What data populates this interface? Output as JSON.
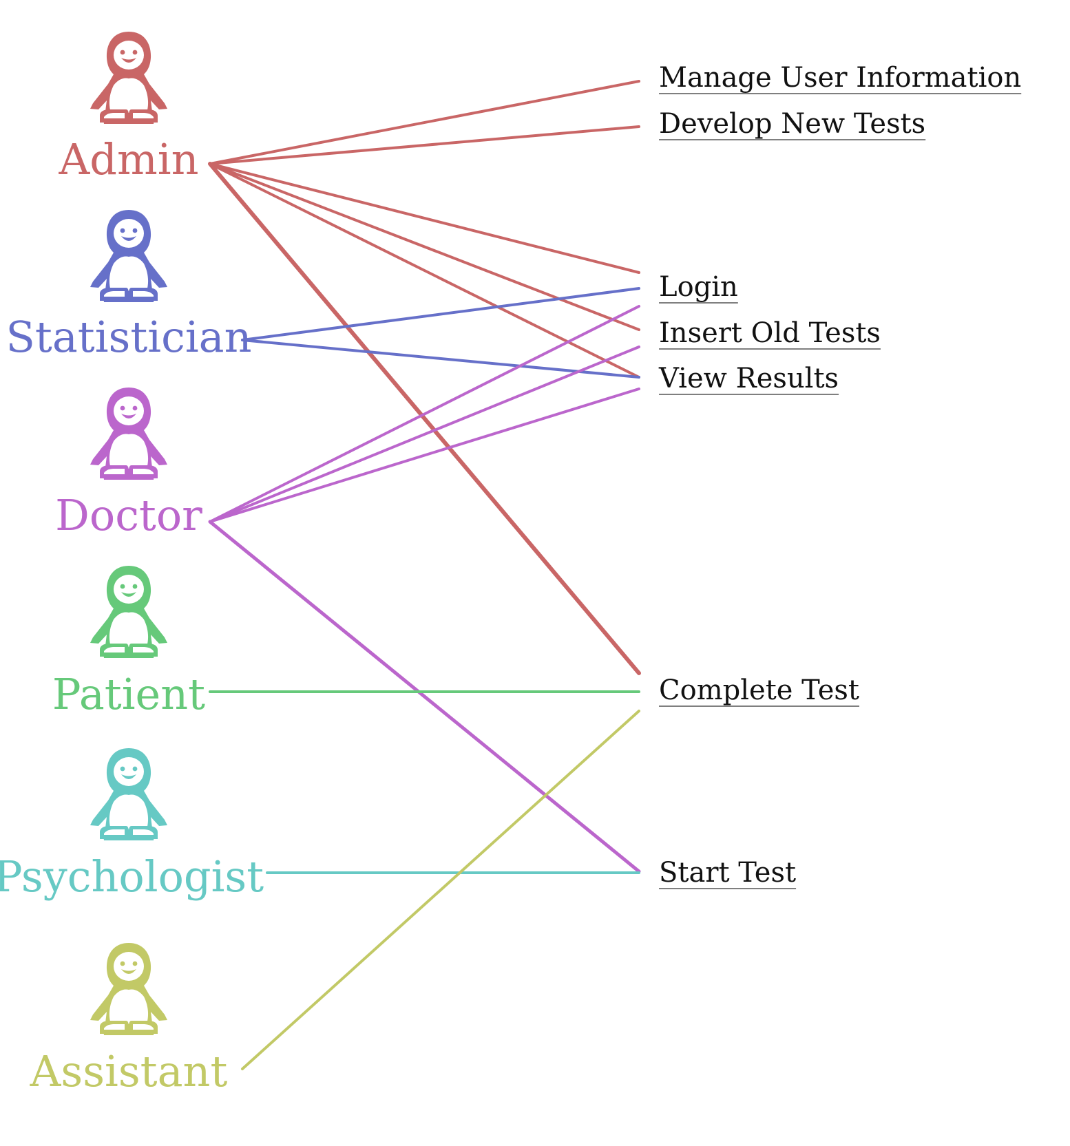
{
  "actors": [
    {
      "id": "admin",
      "label": "Admin",
      "color": "#c96666",
      "icon": "penguin-icon"
    },
    {
      "id": "statistician",
      "label": "Statistician",
      "color": "#6670c9",
      "icon": "penguin-icon"
    },
    {
      "id": "doctor",
      "label": "Doctor",
      "color": "#bb66cc",
      "icon": "penguin-icon"
    },
    {
      "id": "patient",
      "label": "Patient",
      "color": "#66c97a",
      "icon": "penguin-icon"
    },
    {
      "id": "psychologist",
      "label": "Psychologist",
      "color": "#66c9c4",
      "icon": "penguin-icon"
    },
    {
      "id": "assistant",
      "label": "Assistant",
      "color": "#c2c966",
      "icon": "penguin-icon"
    }
  ],
  "use_cases": [
    {
      "id": "manage-user-information",
      "label": "Manage User Information"
    },
    {
      "id": "develop-new-tests",
      "label": "Develop New Tests"
    },
    {
      "id": "login",
      "label": "Login"
    },
    {
      "id": "insert-old-tests",
      "label": "Insert Old Tests"
    },
    {
      "id": "view-results",
      "label": "View Results"
    },
    {
      "id": "complete-test",
      "label": "Complete Test"
    },
    {
      "id": "start-test",
      "label": "Start Test"
    }
  ],
  "connections": [
    {
      "from": "admin",
      "to": "manage-user-information"
    },
    {
      "from": "admin",
      "to": "develop-new-tests"
    },
    {
      "from": "admin",
      "to": "login"
    },
    {
      "from": "admin",
      "to": "insert-old-tests"
    },
    {
      "from": "admin",
      "to": "view-results"
    },
    {
      "from": "admin",
      "to": "complete-test"
    },
    {
      "from": "statistician",
      "to": "login"
    },
    {
      "from": "statistician",
      "to": "view-results"
    },
    {
      "from": "doctor",
      "to": "login"
    },
    {
      "from": "doctor",
      "to": "insert-old-tests"
    },
    {
      "from": "doctor",
      "to": "view-results"
    },
    {
      "from": "doctor",
      "to": "start-test"
    },
    {
      "from": "patient",
      "to": "complete-test"
    },
    {
      "from": "psychologist",
      "to": "start-test"
    },
    {
      "from": "assistant",
      "to": "complete-test"
    }
  ]
}
